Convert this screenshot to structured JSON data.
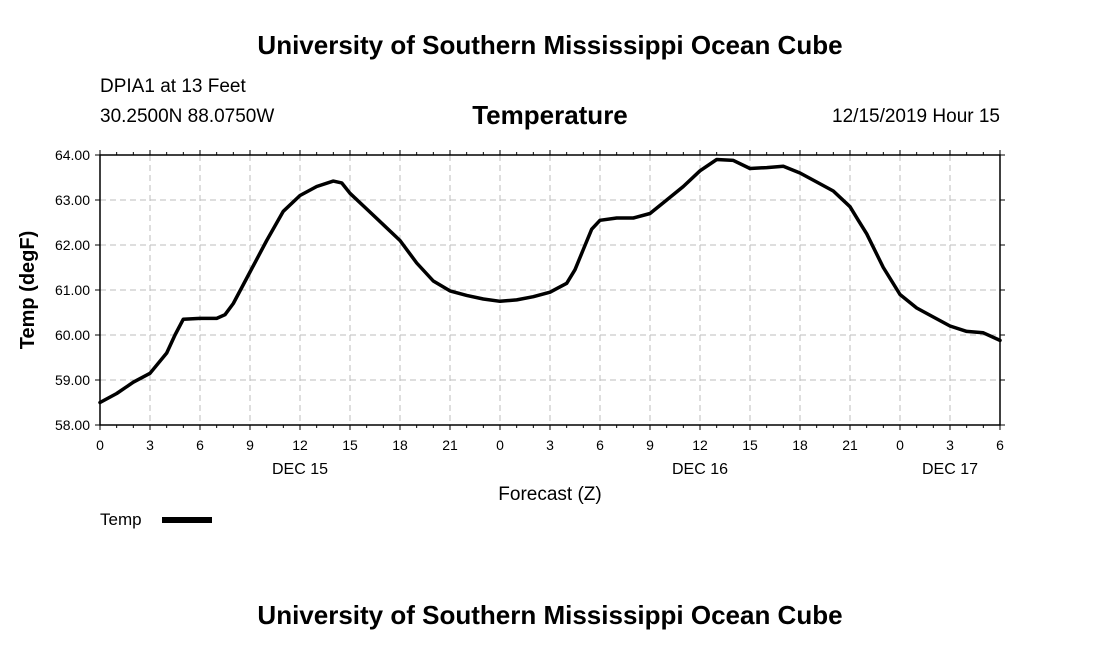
{
  "top_title": "University of Southern Mississippi Ocean Cube",
  "bottom_title": "University of Southern Mississippi Ocean Cube",
  "station": {
    "name": "DPIA1 at 13 Feet",
    "coords": "30.2500N 88.0750W",
    "timestamp": "12/15/2019 Hour 15"
  },
  "legend": {
    "label": "Temp"
  },
  "colors": {
    "line": "#000000",
    "grid": "#bdbdbd",
    "background": "#ffffff"
  },
  "chart_data": {
    "type": "line",
    "title": "Temperature",
    "xlabel": "Forecast (Z)",
    "ylabel": "Temp (degF)",
    "ylim": [
      58.0,
      64.0
    ],
    "xlim": [
      0,
      54
    ],
    "grid": true,
    "legend_position": "bottom-left",
    "y_ticks": [
      "58.00",
      "59.00",
      "60.00",
      "61.00",
      "62.00",
      "63.00",
      "64.00"
    ],
    "x_tick_labels": [
      "0",
      "3",
      "6",
      "9",
      "12",
      "15",
      "18",
      "21",
      "0",
      "3",
      "6",
      "9",
      "12",
      "15",
      "18",
      "21",
      "0",
      "3",
      "6"
    ],
    "day_labels": [
      {
        "label": "DEC 15",
        "hour": 12
      },
      {
        "label": "DEC 16",
        "hour": 36
      },
      {
        "label": "DEC 17",
        "hour": 51
      }
    ],
    "series": [
      {
        "name": "Temp",
        "x": [
          0,
          1,
          2,
          3,
          4,
          4.5,
          5,
          6,
          7,
          7.5,
          8,
          9,
          10,
          11,
          12,
          13,
          14,
          14.5,
          15,
          16,
          17,
          18,
          19,
          20,
          21,
          22,
          23,
          24,
          25,
          26,
          27,
          28,
          28.5,
          29,
          29.5,
          30,
          31,
          32,
          33,
          34,
          35,
          36,
          37,
          38,
          39,
          40,
          41,
          42,
          43,
          44,
          45,
          45.5,
          46,
          47,
          48,
          49,
          50,
          51,
          52,
          53,
          54
        ],
        "values": [
          58.5,
          58.7,
          58.95,
          59.15,
          59.6,
          60.0,
          60.35,
          60.37,
          60.37,
          60.45,
          60.7,
          61.4,
          62.1,
          62.75,
          63.1,
          63.3,
          63.42,
          63.38,
          63.15,
          62.8,
          62.45,
          62.1,
          61.6,
          61.2,
          60.98,
          60.88,
          60.8,
          60.75,
          60.78,
          60.85,
          60.95,
          61.15,
          61.45,
          61.9,
          62.35,
          62.55,
          62.6,
          62.6,
          62.7,
          63.0,
          63.3,
          63.65,
          63.9,
          63.88,
          63.7,
          63.72,
          63.75,
          63.6,
          63.4,
          63.2,
          62.85,
          62.55,
          62.25,
          61.5,
          60.9,
          60.6,
          60.4,
          60.2,
          60.08,
          60.05,
          59.88
        ]
      }
    ]
  }
}
